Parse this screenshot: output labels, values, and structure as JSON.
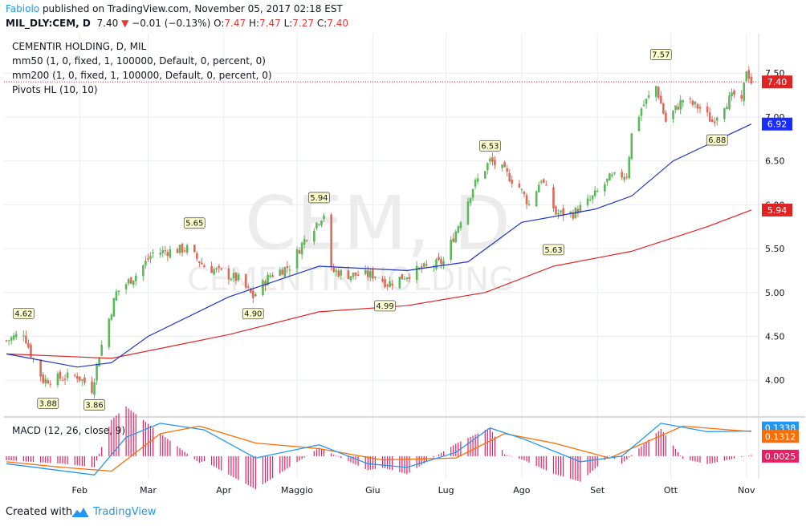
{
  "header": {
    "author": "Fabiolo",
    "published_text": " published on TradingView.com, November 05, 2017 02:18 EST",
    "symbol": "MIL_DLY:CEM, D",
    "last": "7.40",
    "change_arrow": "▼",
    "change": "−0.01 (−0.13%)",
    "open_label": "O:",
    "open": "7.47",
    "high_label": "H:",
    "high": "7.47",
    "low_label": "L:",
    "low": "7.27",
    "close_label": "C:",
    "close": "7.40"
  },
  "legend": {
    "symbol": "CEMENTIR HOLDING, D, MIL",
    "mm50": "mm50 (1, 0, fixed, 1, 100000, Default, 0, percent, 0)",
    "mm200": "mm200 (1, 0, fixed, 1, 100000, Default, 0, percent, 0)",
    "pivots": "Pivots HL (10, 10)",
    "macd": "MACD (12, 26, close, 9)"
  },
  "watermark": {
    "ticker": "CEM, D",
    "name": "CEMENTIR HOLDING"
  },
  "footer": {
    "created_with": "Created with",
    "brand": "TradingView"
  },
  "colors": {
    "up": "#5cb85c",
    "down": "#e06a5a",
    "ma50": "#2033c8",
    "ma200": "#e02424",
    "macd": "#2196f3",
    "signal": "#ff6d00",
    "hist": "#e91e63",
    "grid": "#e9edf2",
    "axis": "#131722"
  },
  "chart_data": [
    {
      "type": "candlestick",
      "title": "CEMENTIR HOLDING, D, MIL",
      "x_labels": [
        "Feb",
        "Mar",
        "Apr",
        "Maggio",
        "Giu",
        "Lug",
        "Ago",
        "Set",
        "Ott",
        "Nov"
      ],
      "y_ticks": [
        4.0,
        4.5,
        5.0,
        5.5,
        6.0,
        6.5,
        7.0,
        7.5
      ],
      "ylim": [
        3.6,
        7.95
      ],
      "grid": true,
      "price_keypoints": [
        [
          "2017-01-02",
          4.45
        ],
        [
          "2017-01-09",
          4.55
        ],
        [
          "2017-01-12",
          4.3
        ],
        [
          "2017-01-17",
          4.0
        ],
        [
          "2017-01-31",
          4.05
        ],
        [
          "2017-02-06",
          3.9
        ],
        [
          "2017-02-09",
          4.3
        ],
        [
          "2017-02-16",
          5.0
        ],
        [
          "2017-02-24",
          5.2
        ],
        [
          "2017-03-03",
          5.45
        ],
        [
          "2017-03-17",
          5.5
        ],
        [
          "2017-03-24",
          5.3
        ],
        [
          "2017-04-07",
          5.15
        ],
        [
          "2017-04-13",
          4.95
        ],
        [
          "2017-04-20",
          5.2
        ],
        [
          "2017-04-28",
          5.3
        ],
        [
          "2017-05-05",
          5.65
        ],
        [
          "2017-05-12",
          5.9
        ],
        [
          "2017-05-15",
          5.25
        ],
        [
          "2017-05-22",
          5.2
        ],
        [
          "2017-06-02",
          5.2
        ],
        [
          "2017-06-07",
          5.1
        ],
        [
          "2017-06-19",
          5.25
        ],
        [
          "2017-06-30",
          5.35
        ],
        [
          "2017-07-05",
          5.7
        ],
        [
          "2017-07-12",
          6.2
        ],
        [
          "2017-07-19",
          6.5
        ],
        [
          "2017-07-24",
          6.4
        ],
        [
          "2017-07-31",
          6.2
        ],
        [
          "2017-08-04",
          6.0
        ],
        [
          "2017-08-09",
          6.3
        ],
        [
          "2017-08-15",
          5.9
        ],
        [
          "2017-08-22",
          5.9
        ],
        [
          "2017-08-29",
          6.05
        ],
        [
          "2017-09-06",
          6.3
        ],
        [
          "2017-09-13",
          6.35
        ],
        [
          "2017-09-15",
          6.8
        ],
        [
          "2017-09-19",
          7.1
        ],
        [
          "2017-09-25",
          7.35
        ],
        [
          "2017-09-29",
          6.95
        ],
        [
          "2017-10-06",
          7.2
        ],
        [
          "2017-10-13",
          7.1
        ],
        [
          "2017-10-18",
          6.95
        ],
        [
          "2017-10-23",
          7.15
        ],
        [
          "2017-10-27",
          7.25
        ],
        [
          "2017-10-30",
          7.15
        ],
        [
          "2017-11-01",
          7.55
        ],
        [
          "2017-11-03",
          7.4
        ]
      ],
      "series": [
        {
          "name": "mm50",
          "points": [
            [
              "2017-01-02",
              4.3
            ],
            [
              "2017-01-31",
              4.15
            ],
            [
              "2017-02-14",
              4.2
            ],
            [
              "2017-03-01",
              4.5
            ],
            [
              "2017-04-03",
              4.95
            ],
            [
              "2017-05-10",
              5.3
            ],
            [
              "2017-06-15",
              5.25
            ],
            [
              "2017-07-10",
              5.35
            ],
            [
              "2017-08-01",
              5.8
            ],
            [
              "2017-08-31",
              5.95
            ],
            [
              "2017-09-15",
              6.1
            ],
            [
              "2017-10-02",
              6.5
            ],
            [
              "2017-11-03",
              6.92
            ]
          ]
        },
        {
          "name": "mm200",
          "points": [
            [
              "2017-01-02",
              4.3
            ],
            [
              "2017-02-14",
              4.25
            ],
            [
              "2017-04-03",
              4.52
            ],
            [
              "2017-05-10",
              4.78
            ],
            [
              "2017-06-15",
              4.85
            ],
            [
              "2017-07-17",
              5.0
            ],
            [
              "2017-08-14",
              5.3
            ],
            [
              "2017-09-15",
              5.47
            ],
            [
              "2017-10-16",
              5.75
            ],
            [
              "2017-11-03",
              5.94
            ]
          ]
        }
      ],
      "pivot_labels": [
        {
          "label": "4.62",
          "date": "2017-01-09",
          "value": 4.62,
          "kind": "high"
        },
        {
          "label": "3.88",
          "date": "2017-01-19",
          "value": 3.88,
          "kind": "low"
        },
        {
          "label": "3.86",
          "date": "2017-02-07",
          "value": 3.86,
          "kind": "low"
        },
        {
          "label": "5.65",
          "date": "2017-03-20",
          "value": 5.65,
          "kind": "high"
        },
        {
          "label": "4.90",
          "date": "2017-04-13",
          "value": 4.9,
          "kind": "low"
        },
        {
          "label": "5.94",
          "date": "2017-05-10",
          "value": 5.94,
          "kind": "high"
        },
        {
          "label": "4.99",
          "date": "2017-06-06",
          "value": 4.99,
          "kind": "low"
        },
        {
          "label": "6.53",
          "date": "2017-07-19",
          "value": 6.53,
          "kind": "high"
        },
        {
          "label": "5.63",
          "date": "2017-08-14",
          "value": 5.63,
          "kind": "low"
        },
        {
          "label": "7.57",
          "date": "2017-09-27",
          "value": 7.57,
          "kind": "high"
        },
        {
          "label": "6.88",
          "date": "2017-10-20",
          "value": 6.88,
          "kind": "low"
        }
      ],
      "price_markers": [
        {
          "label": "7.40",
          "value": 7.4,
          "color": "#e02424"
        },
        {
          "label": "6.92",
          "value": 6.92,
          "color": "#1a2cff"
        },
        {
          "label": "5.94",
          "value": 5.94,
          "color": "#e02424"
        }
      ]
    },
    {
      "type": "line",
      "title": "MACD (12, 26, close, 9)",
      "ylim": [
        -0.12,
        0.2
      ],
      "series": [
        {
          "name": "MACD",
          "points": [
            [
              "2017-01-02",
              -0.04
            ],
            [
              "2017-01-20",
              -0.07
            ],
            [
              "2017-02-07",
              -0.1
            ],
            [
              "2017-02-20",
              0.1
            ],
            [
              "2017-03-06",
              0.175
            ],
            [
              "2017-03-24",
              0.14
            ],
            [
              "2017-04-14",
              -0.01
            ],
            [
              "2017-05-10",
              0.06
            ],
            [
              "2017-05-30",
              -0.04
            ],
            [
              "2017-06-15",
              -0.06
            ],
            [
              "2017-07-05",
              0.02
            ],
            [
              "2017-07-19",
              0.15
            ],
            [
              "2017-08-02",
              0.09
            ],
            [
              "2017-08-25",
              -0.03
            ],
            [
              "2017-09-11",
              0.0
            ],
            [
              "2017-09-27",
              0.175
            ],
            [
              "2017-10-16",
              0.13
            ],
            [
              "2017-11-03",
              0.1338
            ]
          ]
        },
        {
          "name": "Signal",
          "points": [
            [
              "2017-01-02",
              -0.03
            ],
            [
              "2017-01-25",
              -0.06
            ],
            [
              "2017-02-14",
              -0.08
            ],
            [
              "2017-03-06",
              0.12
            ],
            [
              "2017-03-22",
              0.16
            ],
            [
              "2017-04-14",
              0.07
            ],
            [
              "2017-05-10",
              0.04
            ],
            [
              "2017-06-05",
              -0.02
            ],
            [
              "2017-07-05",
              -0.01
            ],
            [
              "2017-07-25",
              0.12
            ],
            [
              "2017-08-14",
              0.07
            ],
            [
              "2017-09-06",
              -0.01
            ],
            [
              "2017-10-06",
              0.16
            ],
            [
              "2017-10-25",
              0.14
            ],
            [
              "2017-11-03",
              0.1312
            ]
          ]
        }
      ],
      "price_markers": [
        {
          "label": "0.1338",
          "color": "#2196f3"
        },
        {
          "label": "0.1312",
          "color": "#ff6d00"
        },
        {
          "label": "0.0025",
          "color": "#e91e63"
        }
      ]
    }
  ]
}
